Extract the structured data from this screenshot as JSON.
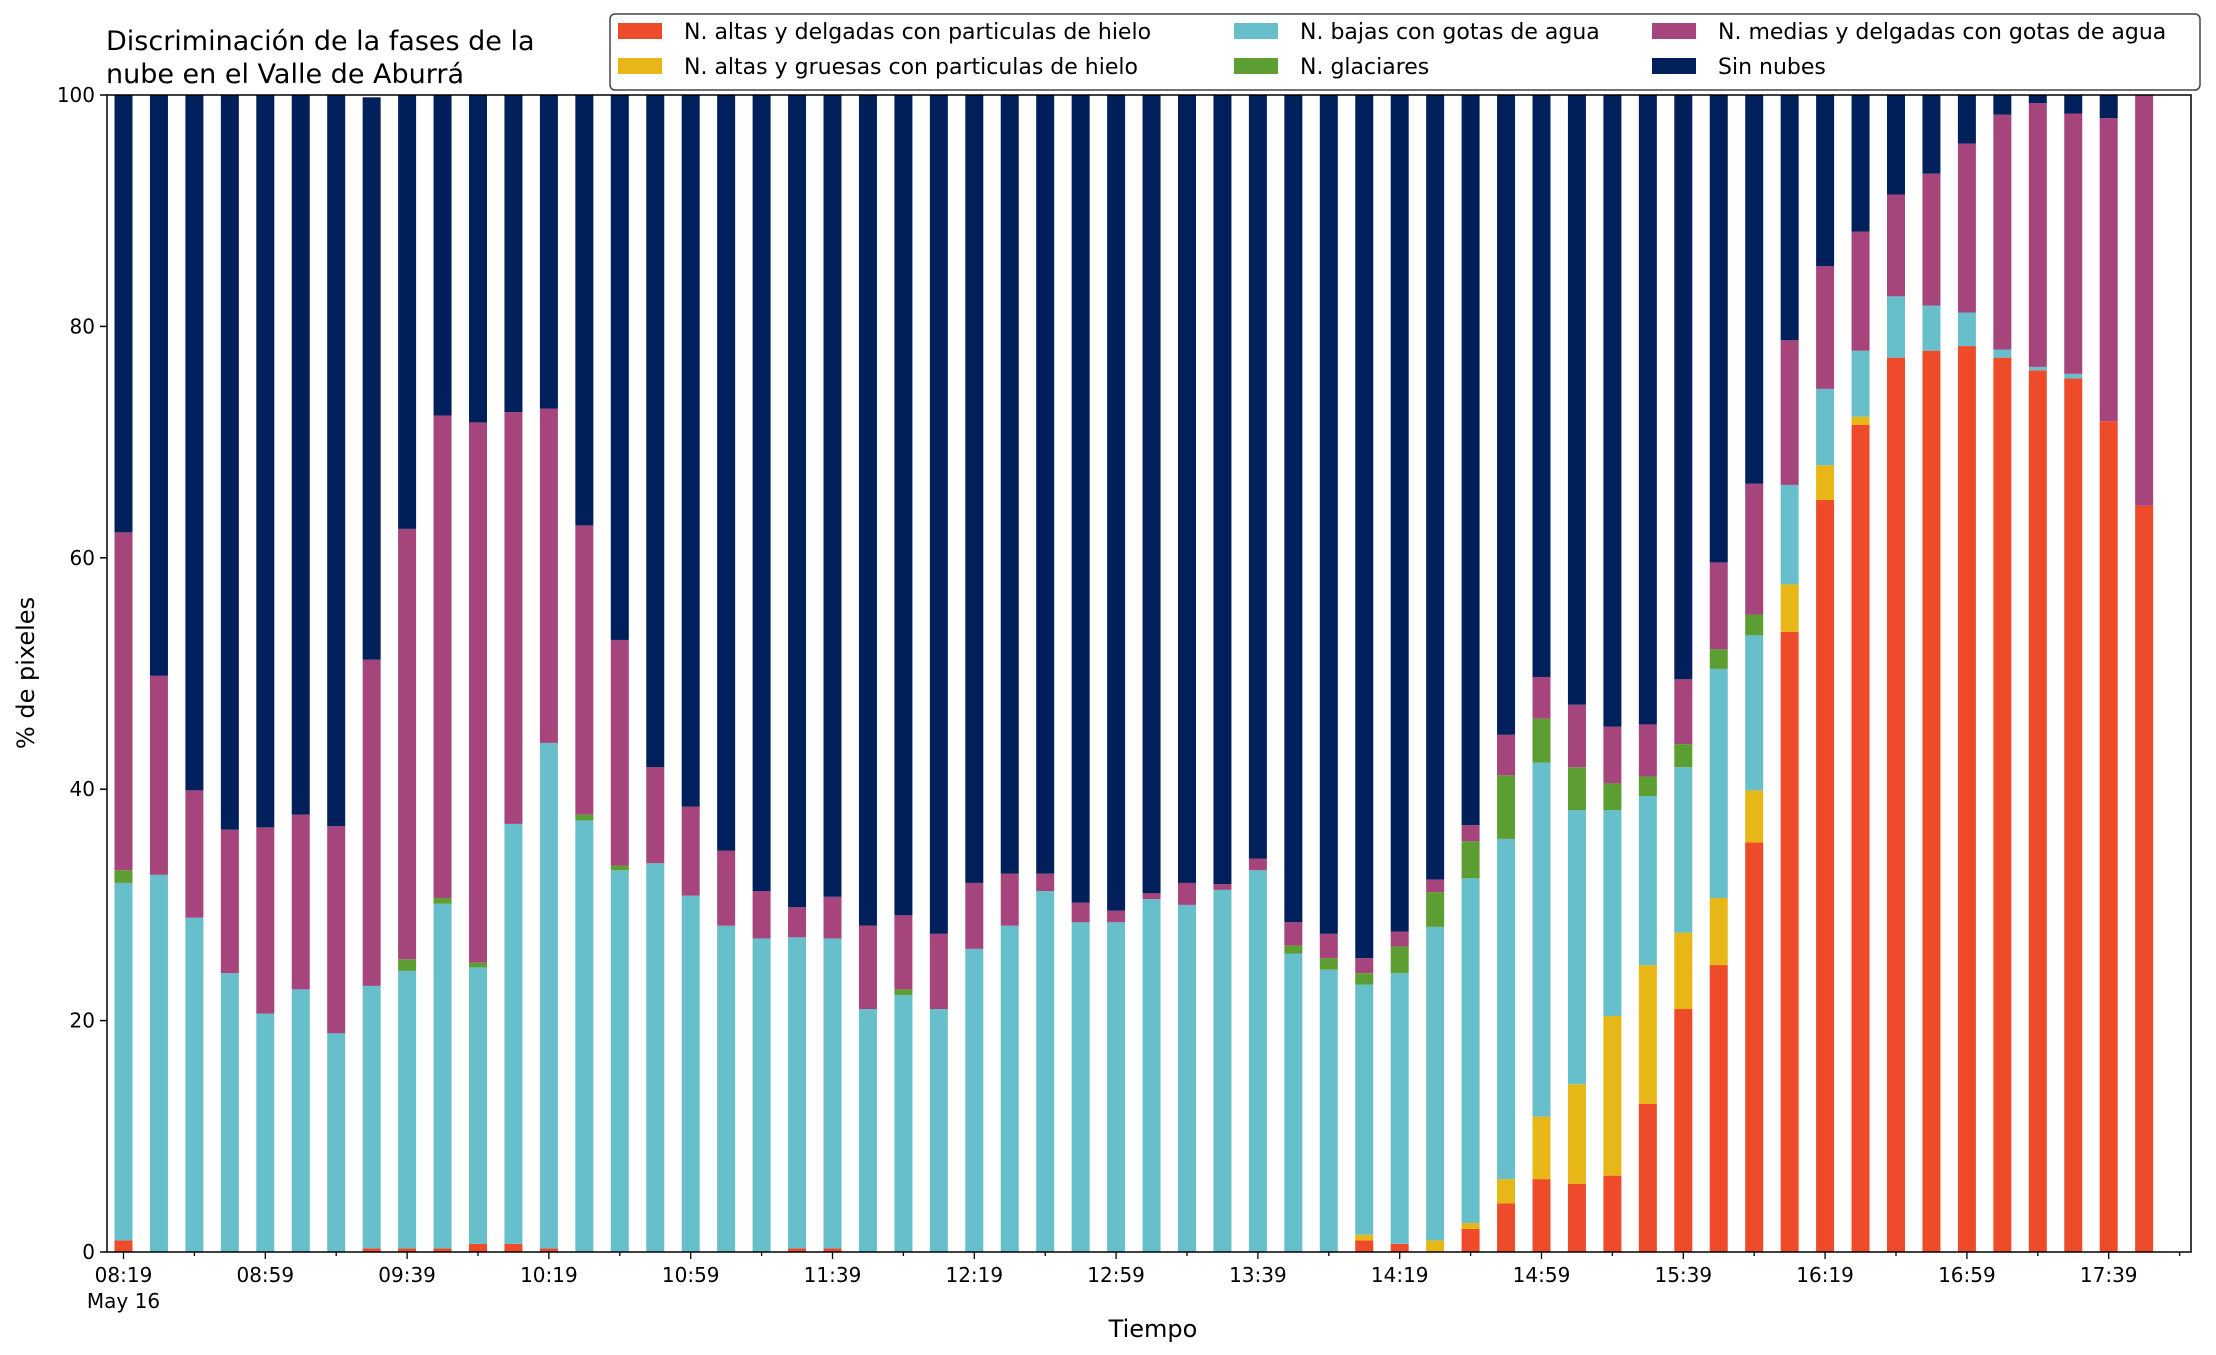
{
  "chart_data": {
    "type": "bar",
    "stacked": true,
    "title_lines": [
      "Discriminación de la fases de la",
      "nube en el Valle de Aburrá"
    ],
    "xlabel": "Tiempo",
    "ylabel": "% de pixeles",
    "ylim": [
      0,
      100
    ],
    "yticks": [
      0,
      20,
      40,
      60,
      80,
      100
    ],
    "grid": false,
    "legend_position": "top-right",
    "x_tick_labels": [
      "08:19",
      "08:59",
      "09:39",
      "10:19",
      "10:59",
      "11:39",
      "12:19",
      "12:59",
      "13:39",
      "14:19",
      "14:59",
      "15:39",
      "16:19",
      "16:59",
      "17:39"
    ],
    "x_tick_sublabel": "May 16",
    "categories": [
      "08:19",
      "08:29",
      "08:39",
      "08:49",
      "08:59",
      "09:09",
      "09:19",
      "09:29",
      "09:39",
      "09:49",
      "09:59",
      "10:09",
      "10:19",
      "10:29",
      "10:39",
      "10:49",
      "10:59",
      "11:09",
      "11:19",
      "11:29",
      "11:39",
      "11:49",
      "11:59",
      "12:09",
      "12:19",
      "12:29",
      "12:39",
      "12:49",
      "12:59",
      "13:09",
      "13:19",
      "13:29",
      "13:39",
      "13:49",
      "13:59",
      "14:09",
      "14:19",
      "14:29",
      "14:39",
      "14:49",
      "14:59",
      "15:09",
      "15:19",
      "15:29",
      "15:39",
      "15:49",
      "15:59",
      "16:09",
      "16:19",
      "16:29",
      "16:39",
      "16:49",
      "16:59",
      "17:09",
      "17:19",
      "17:29",
      "17:39",
      "17:49"
    ],
    "series": [
      {
        "name": "N. altas y delgadas con particulas de hielo",
        "color": "#ee4b2b",
        "values": [
          1.0,
          0,
          0,
          0,
          0,
          0,
          0,
          0.3,
          0.3,
          0.3,
          0.7,
          0.7,
          0.3,
          0,
          0,
          0,
          0,
          0,
          0,
          0.3,
          0.3,
          0,
          0,
          0,
          0,
          0,
          0,
          0,
          0,
          0,
          0,
          0,
          0,
          0,
          0,
          1.0,
          0.7,
          0,
          2.0,
          4.2,
          6.3,
          5.9,
          6.6,
          12.8,
          21.0,
          24.8,
          35.4,
          53.6,
          65.0,
          71.5,
          77.3,
          77.9,
          78.3,
          77.3,
          76.2,
          75.5,
          71.8,
          64.5
        ]
      },
      {
        "name": "N. altas y gruesas con particulas de hielo",
        "color": "#e6b716",
        "values": [
          0,
          0,
          0,
          0,
          0,
          0,
          0,
          0,
          0,
          0,
          0,
          0,
          0,
          0,
          0,
          0,
          0,
          0,
          0,
          0,
          0,
          0,
          0,
          0,
          0,
          0,
          0,
          0,
          0,
          0,
          0,
          0,
          0,
          0,
          0,
          0.5,
          0,
          1.0,
          0.5,
          2.1,
          5.4,
          8.6,
          13.8,
          12.0,
          6.6,
          5.8,
          4.5,
          4.1,
          3.0,
          0.7,
          0,
          0,
          0,
          0,
          0,
          0,
          0,
          0
        ]
      },
      {
        "name": "N. bajas con gotas de agua",
        "color": "#67bfcb",
        "values": [
          30.9,
          32.6,
          28.9,
          24.1,
          20.6,
          22.7,
          18.9,
          22.7,
          24.0,
          29.8,
          23.9,
          36.3,
          43.7,
          37.3,
          33.0,
          33.6,
          30.8,
          28.2,
          27.1,
          26.9,
          26.8,
          21.0,
          22.2,
          21.0,
          26.2,
          28.2,
          31.2,
          28.5,
          28.5,
          30.5,
          30.0,
          31.3,
          33.0,
          25.8,
          24.4,
          21.6,
          23.4,
          27.1,
          29.8,
          29.4,
          30.6,
          23.7,
          17.8,
          14.6,
          14.3,
          19.8,
          13.4,
          8.6,
          6.6,
          5.7,
          5.3,
          3.9,
          2.9,
          0.7,
          0.3,
          0.4,
          0,
          0
        ]
      },
      {
        "name": "N. glaciares",
        "color": "#5c9e31",
        "values": [
          1.1,
          0,
          0,
          0,
          0,
          0,
          0,
          0,
          1.0,
          0.5,
          0.4,
          0,
          0,
          0.5,
          0.4,
          0,
          0,
          0,
          0,
          0,
          0,
          0,
          0.5,
          0,
          0,
          0,
          0,
          0,
          0,
          0,
          0,
          0,
          0,
          0.7,
          1.0,
          1.0,
          2.3,
          3.0,
          3.2,
          5.5,
          3.8,
          3.7,
          2.3,
          1.7,
          2.0,
          1.7,
          1.8,
          0,
          0,
          0,
          0,
          0,
          0,
          0,
          0,
          0,
          0,
          0
        ]
      },
      {
        "name": "N. medias y delgadas con gotas de agua",
        "color": "#a6447c",
        "values": [
          29.2,
          17.2,
          11.0,
          12.4,
          16.1,
          15.1,
          17.9,
          28.2,
          37.2,
          41.7,
          46.7,
          35.6,
          28.9,
          25.0,
          19.5,
          8.3,
          7.7,
          6.5,
          4.1,
          2.6,
          3.6,
          7.2,
          6.4,
          6.5,
          5.7,
          4.5,
          1.5,
          1.7,
          1.0,
          0.5,
          1.9,
          0.5,
          1.0,
          2.0,
          2.1,
          1.3,
          1.3,
          1.1,
          1.4,
          3.5,
          3.6,
          5.4,
          4.9,
          4.5,
          5.6,
          7.5,
          11.3,
          12.5,
          10.6,
          10.3,
          8.8,
          11.4,
          14.6,
          20.3,
          22.8,
          22.5,
          26.2,
          35.5
        ]
      },
      {
        "name": "Sin nubes",
        "color": "#00205b",
        "values": [
          37.8,
          50.2,
          60.1,
          63.5,
          63.3,
          62.2,
          63.2,
          48.6,
          37.5,
          27.7,
          28.3,
          27.4,
          27.1,
          37.2,
          47.1,
          58.1,
          61.5,
          65.3,
          68.8,
          70.2,
          69.3,
          71.8,
          70.9,
          72.5,
          68.1,
          67.3,
          67.3,
          69.8,
          70.5,
          69.0,
          68.1,
          68.2,
          66.0,
          71.5,
          72.5,
          74.6,
          72.3,
          67.8,
          63.1,
          55.3,
          50.3,
          52.7,
          54.6,
          54.4,
          50.5,
          40.4,
          33.6,
          21.2,
          14.8,
          11.8,
          8.6,
          6.8,
          4.2,
          1.7,
          0.7,
          1.6,
          2.0,
          0
        ]
      }
    ]
  }
}
